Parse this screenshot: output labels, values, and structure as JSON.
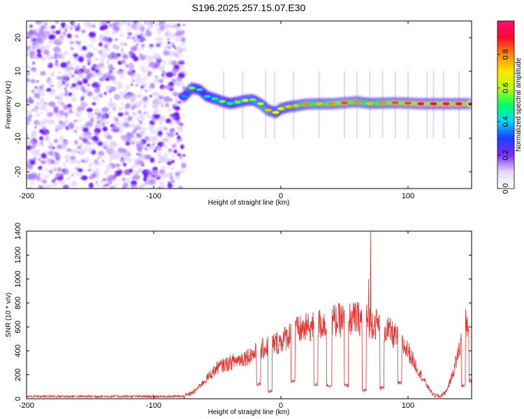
{
  "title": "S196.2025.257.15.07.E30",
  "colorbar": {
    "label": "Normalized spectral amplitude",
    "ticks": [
      0.0,
      0.2,
      0.4,
      0.6,
      0.8
    ],
    "tick_labels": [
      "0.0",
      "0.2",
      "0.4",
      "0.6",
      "0.8"
    ],
    "range": [
      0,
      1
    ],
    "colors": [
      "#ffffff",
      "#e6d9ff",
      "#7a2cff",
      "#1f3cff",
      "#00d7ff",
      "#00ff66",
      "#b8ff00",
      "#ffe600",
      "#ff8a00",
      "#ff0a2a",
      "#ff0a78"
    ]
  },
  "colors": {
    "snr_line": "#e8322d",
    "ridge_peak": "#ff1e2a",
    "noise": "#8a3cff"
  },
  "chart_data": [
    {
      "type": "heatmap",
      "name": "spectrogram",
      "xlabel": "Height of straight line (km)",
      "ylabel": "Frequency (Hz)",
      "xlim": [
        -200,
        150
      ],
      "ylim": [
        -25,
        25
      ],
      "xticks": [
        -200,
        -100,
        0,
        100
      ],
      "xtick_labels": [
        "-200",
        "-100",
        "0",
        "100"
      ],
      "yticks": [
        -20,
        -10,
        0,
        10,
        20
      ],
      "ytick_labels": [
        "-20",
        "-10",
        "0",
        "10",
        "20"
      ],
      "noise_region_x": [
        -200,
        -76
      ],
      "ridge": {
        "x": [
          -76,
          -70,
          -64,
          -58,
          -52,
          -46,
          -40,
          -34,
          -28,
          -22,
          -16,
          -10,
          -4,
          0,
          6,
          12,
          20,
          30,
          40,
          50,
          60,
          70,
          80,
          90,
          100,
          110,
          120,
          130,
          140,
          150
        ],
        "freq_hz": [
          2.5,
          5.0,
          4.5,
          2.5,
          1.8,
          1.0,
          0.4,
          0.8,
          1.3,
          1.5,
          0.3,
          -1.6,
          -2.3,
          -1.2,
          -0.6,
          -0.3,
          0.2,
          0.3,
          0.3,
          0.6,
          0.9,
          0.4,
          0.5,
          0.6,
          0.5,
          0.3,
          0.3,
          0.3,
          0.3,
          0.3
        ],
        "amplitude": [
          0.35,
          0.55,
          0.45,
          0.4,
          0.5,
          0.55,
          0.5,
          0.55,
          0.6,
          0.55,
          0.6,
          0.75,
          0.7,
          0.7,
          0.75,
          0.75,
          0.8,
          0.75,
          0.8,
          0.85,
          0.8,
          0.75,
          0.8,
          0.85,
          0.85,
          0.95,
          0.9,
          0.95,
          0.9,
          0.9
        ]
      }
    },
    {
      "type": "line",
      "name": "snr",
      "xlabel": "Height of straight line (km)",
      "ylabel": "SNR (10 * v/v)",
      "xlim": [
        -200,
        150
      ],
      "ylim": [
        0,
        1400
      ],
      "xticks": [
        -200,
        -100,
        0,
        100
      ],
      "xtick_labels": [
        "-200",
        "-100",
        "0",
        "100"
      ],
      "yticks": [
        0,
        200,
        400,
        600,
        800,
        1000,
        1200,
        1400
      ],
      "ytick_labels": [
        "0",
        "200",
        "400",
        "600",
        "800",
        "1000",
        "1200",
        "1400"
      ],
      "envelope": {
        "x": [
          -200,
          -76,
          -68,
          -60,
          -50,
          -40,
          -30,
          -20,
          -10,
          0,
          10,
          20,
          30,
          40,
          50,
          60,
          70,
          80,
          90,
          100,
          110,
          115,
          120,
          125,
          130,
          135,
          140,
          145,
          150
        ],
        "y": [
          20,
          20,
          60,
          150,
          260,
          300,
          340,
          380,
          440,
          480,
          560,
          590,
          620,
          650,
          660,
          670,
          650,
          600,
          520,
          400,
          200,
          110,
          30,
          20,
          60,
          200,
          400,
          620,
          640
        ]
      },
      "spikes": [
        {
          "x": 69,
          "y": 1000
        },
        {
          "x": 70.5,
          "y": 1410
        }
      ],
      "dropouts": [
        {
          "x": -19,
          "w": 3,
          "y": 120
        },
        {
          "x": -10,
          "w": 3,
          "y": 60
        },
        {
          "x": 8,
          "w": 3,
          "y": 150
        },
        {
          "x": 26,
          "w": 3,
          "y": 120
        },
        {
          "x": 36,
          "w": 4,
          "y": 110
        },
        {
          "x": 50,
          "w": 3,
          "y": 110
        },
        {
          "x": 64,
          "w": 3,
          "y": 70
        },
        {
          "x": 78,
          "w": 3,
          "y": 90
        },
        {
          "x": 92,
          "w": 3,
          "y": 130
        },
        {
          "x": 142,
          "w": 3,
          "y": 110
        },
        {
          "x": 148,
          "w": 2,
          "y": 150
        }
      ]
    }
  ]
}
